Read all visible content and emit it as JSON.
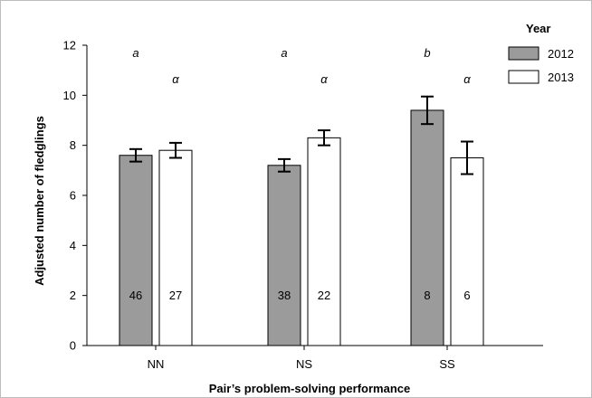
{
  "chart_data": {
    "type": "bar",
    "title": "",
    "xlabel": "Pair’s problem-solving performance",
    "ylabel": "Adjusted number of fledglings",
    "categories": [
      "NN",
      "NS",
      "SS"
    ],
    "ylim": [
      0,
      12
    ],
    "yticks": [
      "0",
      "2",
      "4",
      "6",
      "8",
      "10",
      "12"
    ],
    "legend": {
      "title": "Year",
      "placement": "top-right"
    },
    "series": [
      {
        "name": "2012",
        "color": "#9b9b9b",
        "values": [
          7.6,
          7.2,
          9.4
        ],
        "error": [
          0.25,
          0.25,
          0.55
        ],
        "n_labels": [
          "46",
          "38",
          "8"
        ],
        "sig_labels": [
          "a",
          "a",
          "b"
        ]
      },
      {
        "name": "2013",
        "color": "#ffffff",
        "values": [
          7.8,
          8.3,
          7.5
        ],
        "error": [
          0.3,
          0.3,
          0.65
        ],
        "n_labels": [
          "27",
          "22",
          "6"
        ],
        "sig_labels": [
          "α",
          "α",
          "α"
        ]
      }
    ],
    "grid": false
  }
}
